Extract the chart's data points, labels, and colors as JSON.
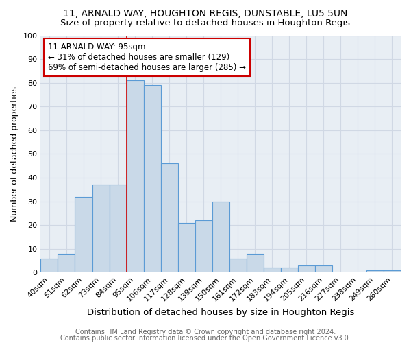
{
  "title1": "11, ARNALD WAY, HOUGHTON REGIS, DUNSTABLE, LU5 5UN",
  "title2": "Size of property relative to detached houses in Houghton Regis",
  "xlabel": "Distribution of detached houses by size in Houghton Regis",
  "ylabel": "Number of detached properties",
  "categories": [
    "40sqm",
    "51sqm",
    "62sqm",
    "73sqm",
    "84sqm",
    "95sqm",
    "106sqm",
    "117sqm",
    "128sqm",
    "139sqm",
    "150sqm",
    "161sqm",
    "172sqm",
    "183sqm",
    "194sqm",
    "205sqm",
    "216sqm",
    "227sqm",
    "238sqm",
    "249sqm",
    "260sqm"
  ],
  "values": [
    6,
    8,
    32,
    37,
    37,
    81,
    79,
    46,
    21,
    22,
    30,
    6,
    8,
    2,
    2,
    3,
    3,
    0,
    0,
    1,
    1
  ],
  "bar_color": "#c9d9e8",
  "bar_edge_color": "#5b9bd5",
  "marker_idx": 5,
  "marker_color": "#cc0000",
  "annotation_text": "11 ARNALD WAY: 95sqm\n← 31% of detached houses are smaller (129)\n69% of semi-detached houses are larger (285) →",
  "annotation_box_color": "#ffffff",
  "annotation_border_color": "#cc0000",
  "footer1": "Contains HM Land Registry data © Crown copyright and database right 2024.",
  "footer2": "Contains public sector information licensed under the Open Government Licence v3.0.",
  "ylim": [
    0,
    100
  ],
  "yticks": [
    0,
    10,
    20,
    30,
    40,
    50,
    60,
    70,
    80,
    90,
    100
  ],
  "grid_color": "#d0d8e4",
  "bg_color": "#ffffff",
  "title1_fontsize": 10,
  "title2_fontsize": 9.5,
  "xlabel_fontsize": 9.5,
  "ylabel_fontsize": 9,
  "tick_fontsize": 8,
  "annotation_fontsize": 8.5,
  "footer_fontsize": 7
}
